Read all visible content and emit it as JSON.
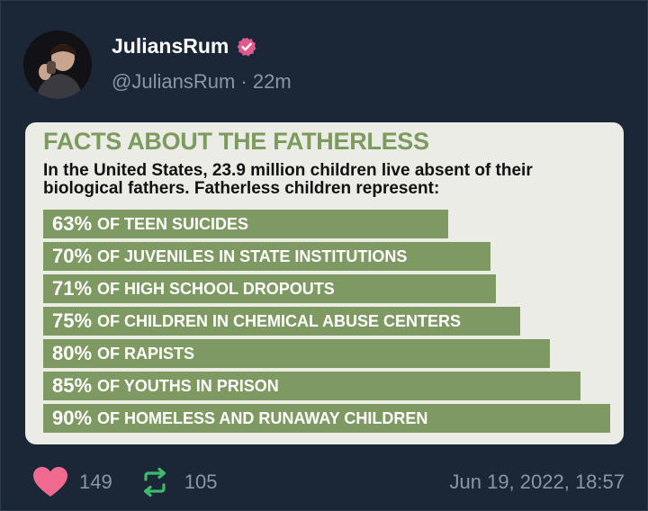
{
  "author": {
    "display_name": "JuliansRum",
    "handle": "@JuliansRum",
    "separator": "·",
    "time_ago": "22m",
    "verified_icon": "verified-badge-icon"
  },
  "colors": {
    "background": "#1b2637",
    "verified": "#e05a8a",
    "heart": "#f06a90",
    "retweet": "#3fba6b",
    "bar": "#7e9a62",
    "title": "#7d9a5f"
  },
  "card": {
    "title": "FACTS ABOUT THE FATHERLESS",
    "intro": "In the United States, 23.9 million children live absent of their biological fathers. Fatherless children represent:",
    "bars": [
      {
        "pct": "63%",
        "value": 63,
        "label": "OF TEEN SUICIDES"
      },
      {
        "pct": "70%",
        "value": 70,
        "label": "OF JUVENILES IN STATE INSTITUTIONS"
      },
      {
        "pct": "71%",
        "value": 71,
        "label": "OF HIGH SCHOOL DROPOUTS"
      },
      {
        "pct": "75%",
        "value": 75,
        "label": "OF CHILDREN IN CHEMICAL ABUSE CENTERS"
      },
      {
        "pct": "80%",
        "value": 80,
        "label": "OF RAPISTS"
      },
      {
        "pct": "85%",
        "value": 85,
        "label": "OF YOUTHS IN PRISON"
      },
      {
        "pct": "90%",
        "value": 90,
        "label": "OF HOMELESS AND RUNAWAY CHILDREN"
      }
    ]
  },
  "actions": {
    "likes": "149",
    "retweets": "105",
    "timestamp": "Jun 19, 2022, 18:57",
    "like_icon": "heart-icon",
    "retweet_icon": "retweet-icon"
  }
}
